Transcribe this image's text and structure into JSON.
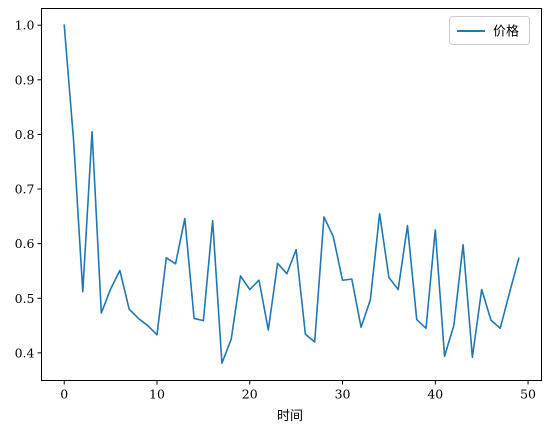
{
  "chart_data": {
    "type": "line",
    "xlabel": "时间",
    "ylabel": "",
    "xlim": [
      -2.45,
      51.45
    ],
    "ylim": [
      0.3494,
      1.0306
    ],
    "xticks": [
      0,
      10,
      20,
      30,
      40,
      50
    ],
    "yticks": [
      0.4,
      0.5,
      0.6,
      0.7,
      0.8,
      0.9,
      1.0
    ],
    "xtick_labels": [
      "0",
      "10",
      "20",
      "30",
      "40",
      "50"
    ],
    "ytick_labels": [
      "0.4",
      "0.5",
      "0.6",
      "0.7",
      "0.8",
      "0.9",
      "1.0"
    ],
    "grid": false,
    "legend_position": "top-right",
    "series": [
      {
        "name": "价格",
        "color": "#1f77b4",
        "x": [
          0,
          1,
          2,
          3,
          4,
          5,
          6,
          7,
          8,
          9,
          10,
          11,
          12,
          13,
          14,
          15,
          16,
          17,
          18,
          19,
          20,
          21,
          22,
          23,
          24,
          25,
          26,
          27,
          28,
          29,
          30,
          31,
          32,
          33,
          34,
          35,
          36,
          37,
          38,
          39,
          40,
          41,
          42,
          43,
          44,
          45,
          46,
          47,
          48,
          49
        ],
        "values": [
          1.0,
          0.791,
          0.512,
          0.805,
          0.473,
          0.517,
          0.551,
          0.48,
          0.463,
          0.45,
          0.433,
          0.574,
          0.563,
          0.646,
          0.463,
          0.459,
          0.642,
          0.381,
          0.425,
          0.541,
          0.516,
          0.533,
          0.442,
          0.564,
          0.545,
          0.589,
          0.434,
          0.42,
          0.649,
          0.613,
          0.533,
          0.535,
          0.447,
          0.497,
          0.655,
          0.538,
          0.516,
          0.633,
          0.461,
          0.445,
          0.625,
          0.394,
          0.45,
          0.598,
          0.392,
          0.516,
          0.46,
          0.445,
          0.51,
          0.573
        ]
      }
    ]
  }
}
